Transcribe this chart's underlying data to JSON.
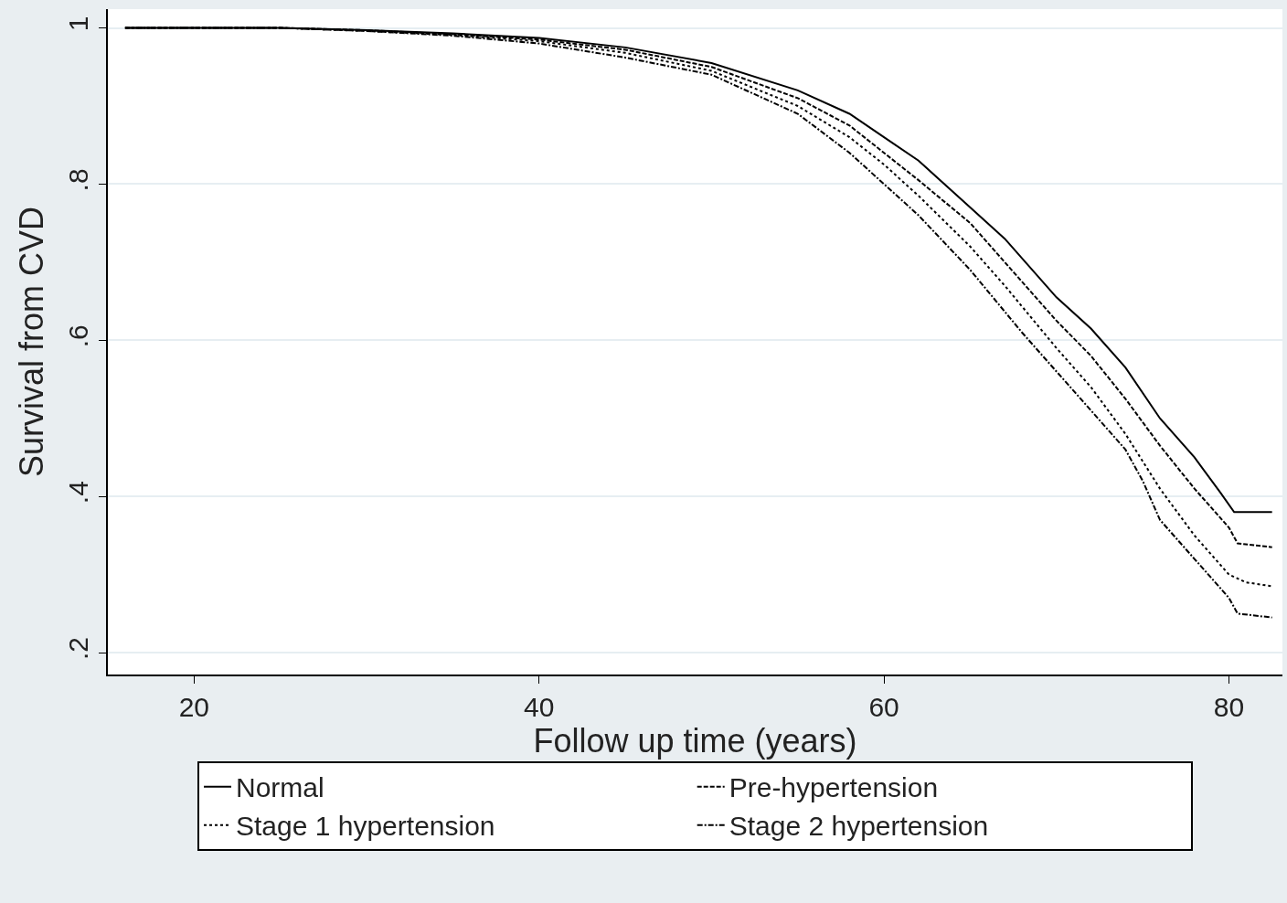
{
  "chart_data": {
    "type": "line",
    "xlabel": "Follow up time (years)",
    "ylabel": "Survival from CVD",
    "xlim": [
      15,
      83.1
    ],
    "xticks": [
      20,
      40,
      60,
      80
    ],
    "ylim": [
      0.172,
      1.024
    ],
    "yticks": [
      {
        "value": 0.2,
        "label": ".2"
      },
      {
        "value": 0.4,
        "label": ".4"
      },
      {
        "value": 0.6,
        "label": ".6"
      },
      {
        "value": 0.8,
        "label": ".8"
      },
      {
        "value": 1,
        "label": "1"
      }
    ],
    "grid": "y",
    "legend": "bottom",
    "series": [
      {
        "name": "Normal",
        "color": "#000000",
        "line_style": "solid",
        "x": [
          16,
          25,
          30,
          35,
          40,
          45,
          50,
          55,
          58,
          60,
          62,
          65,
          67,
          70,
          72,
          74,
          76,
          78,
          79.5,
          80.3,
          82.5
        ],
        "values": [
          1,
          1,
          0.997,
          0.993,
          0.987,
          0.975,
          0.955,
          0.92,
          0.89,
          0.86,
          0.83,
          0.77,
          0.73,
          0.655,
          0.615,
          0.565,
          0.5,
          0.45,
          0.405,
          0.38,
          0.38
        ]
      },
      {
        "name": "Pre-hypertension",
        "color": "#000000",
        "line_style": "dashed",
        "x": [
          16,
          25,
          30,
          35,
          40,
          45,
          50,
          55,
          58,
          60,
          62,
          65,
          67,
          70,
          72,
          74,
          76,
          78,
          80,
          80.5,
          82.5
        ],
        "values": [
          1,
          1,
          0.997,
          0.992,
          0.985,
          0.972,
          0.95,
          0.91,
          0.875,
          0.84,
          0.805,
          0.75,
          0.7,
          0.625,
          0.58,
          0.525,
          0.465,
          0.41,
          0.36,
          0.34,
          0.335
        ]
      },
      {
        "name": "Stage 1 hypertension",
        "color": "#000000",
        "line_style": "dotted",
        "x": [
          16,
          25,
          30,
          35,
          40,
          45,
          50,
          55,
          58,
          60,
          62,
          65,
          67,
          70,
          72,
          74,
          76,
          78,
          80,
          81,
          82.5
        ],
        "values": [
          1,
          1,
          0.996,
          0.991,
          0.983,
          0.968,
          0.945,
          0.9,
          0.86,
          0.825,
          0.785,
          0.72,
          0.67,
          0.59,
          0.54,
          0.48,
          0.41,
          0.35,
          0.3,
          0.29,
          0.285
        ]
      },
      {
        "name": "Stage 2 hypertension",
        "color": "#000000",
        "line_style": "dashdot",
        "x": [
          16,
          25,
          30,
          35,
          40,
          45,
          50,
          55,
          58,
          60,
          62,
          65,
          68,
          70,
          72,
          74,
          75,
          76,
          78,
          80,
          80.5,
          82.5
        ],
        "values": [
          1,
          1,
          0.996,
          0.99,
          0.98,
          0.962,
          0.94,
          0.89,
          0.84,
          0.8,
          0.76,
          0.69,
          0.61,
          0.56,
          0.51,
          0.46,
          0.42,
          0.37,
          0.32,
          0.27,
          0.25,
          0.245
        ]
      }
    ]
  }
}
